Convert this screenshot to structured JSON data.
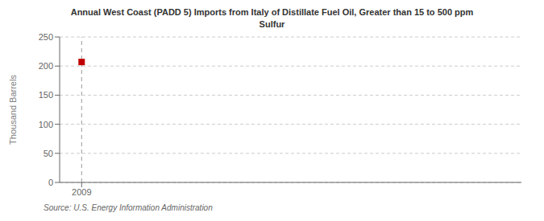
{
  "chart_data": {
    "type": "scatter",
    "title": "Annual West Coast (PADD 5) Imports from Italy of Distillate Fuel Oil, Greater than 15 to 500 ppm\nSulfur",
    "ylabel": "Thousand Barrels",
    "annotation": "Source: U.S. Energy Information Administration",
    "x": [
      2009
    ],
    "values": [
      207
    ],
    "color": "#c00000",
    "marker": "square",
    "xlim": [
      2008.3,
      2023
    ],
    "xticks": [
      2009
    ],
    "ylim": [
      0,
      250
    ],
    "yticks": [
      0,
      50,
      100,
      150,
      200,
      250
    ],
    "grid": true
  }
}
